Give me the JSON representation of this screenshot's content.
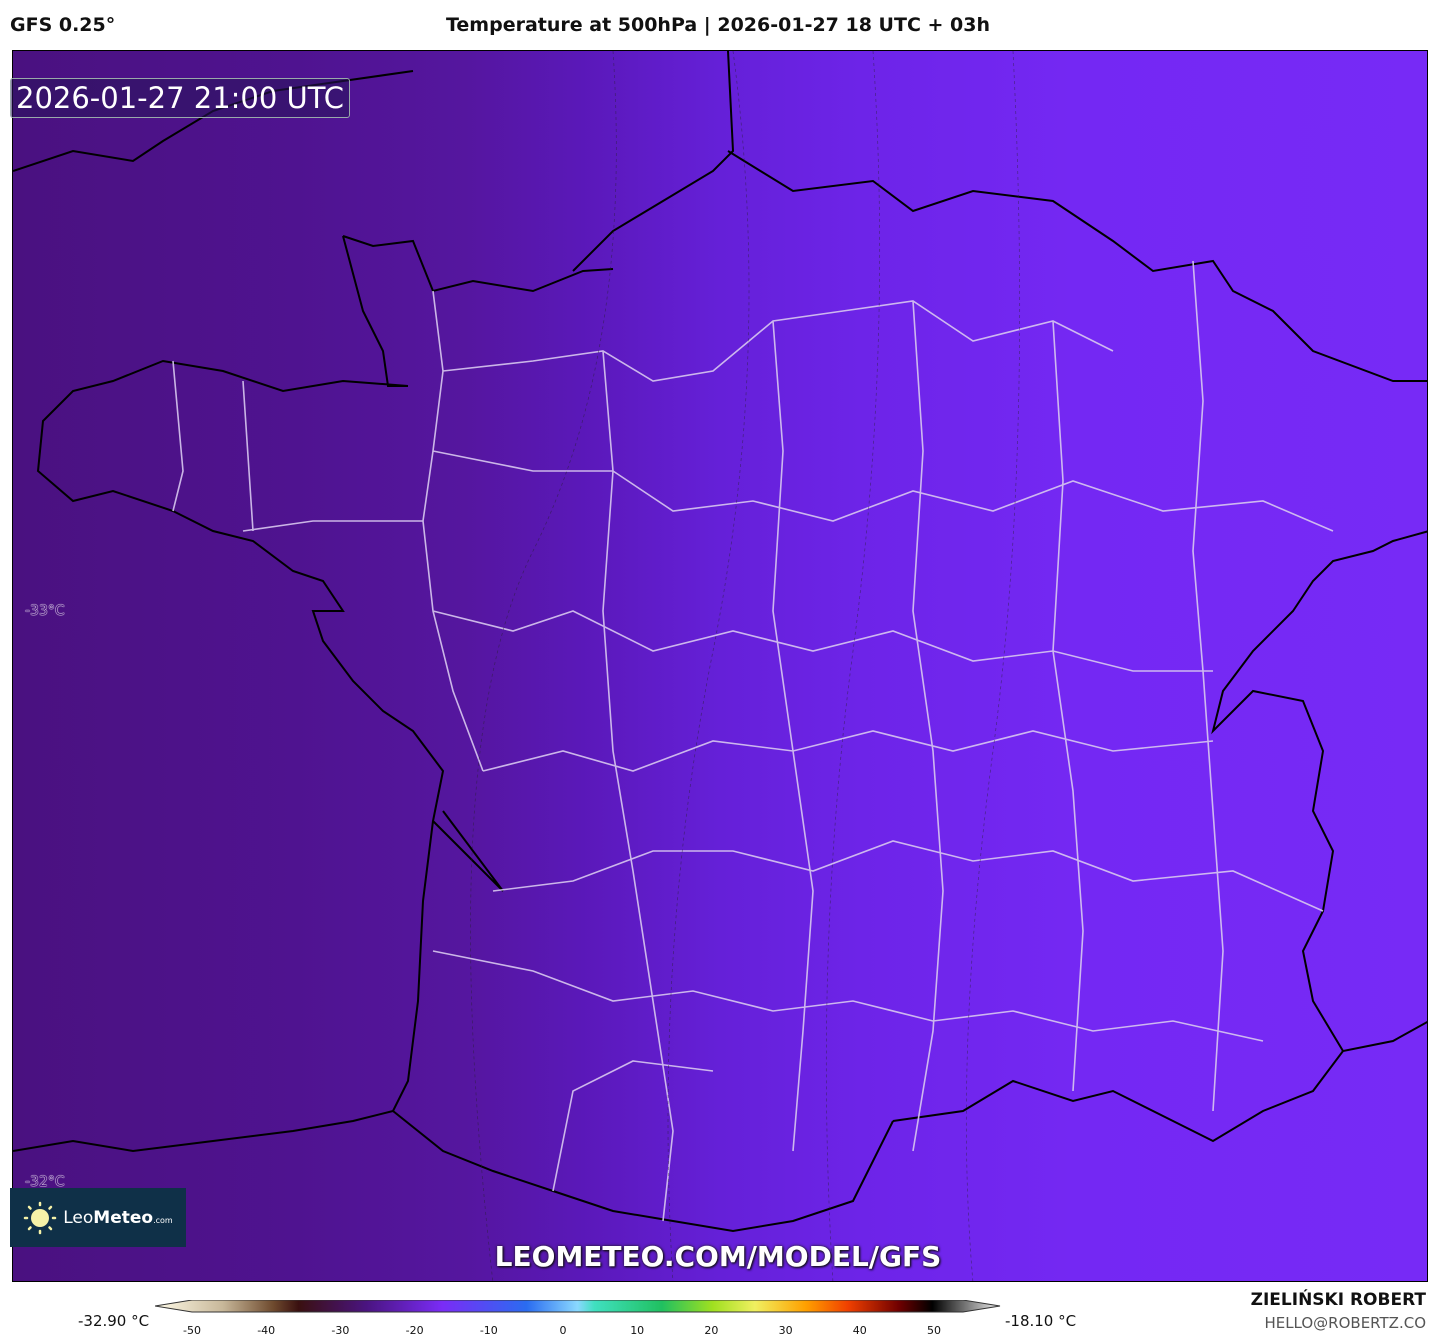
{
  "header": {
    "model": "GFS 0.25°",
    "title": "Temperature at 500hPa | 2026-01-27 18 UTC + 03h"
  },
  "map": {
    "valid_time": "2026-01-27 21:00 UTC",
    "isotherm_labels": [
      "-33°C",
      "-32°C"
    ],
    "watermark_url": "LEOMETEO.COM/MODEL/GFS",
    "logo": {
      "name": "LeoMeteo",
      "name_light": "Leo",
      "name_bold": "Meteo",
      "suffix": ".com",
      "icon": "sun-icon"
    },
    "fill_colors": {
      "west": "#4a1180",
      "east": "#772af6"
    }
  },
  "colorbar": {
    "min_label": "-32.90 °C",
    "max_label": "-18.10 °C",
    "ticks": [
      "-50",
      "-40",
      "-30",
      "-20",
      "-10",
      "0",
      "10",
      "20",
      "30",
      "40",
      "50"
    ],
    "unit": "°C"
  },
  "footer": {
    "author": "ZIELIŃSKI ROBERT",
    "email": "HELLO@ROBERTZ.CO"
  }
}
